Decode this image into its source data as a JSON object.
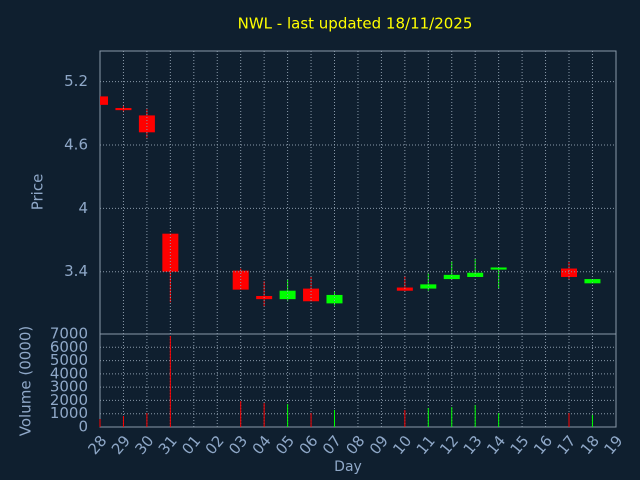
{
  "chart_data": {
    "type": "candlestick",
    "title": "NWL - last updated 18/11/2025",
    "y_label": "Price",
    "y2_label": "Volume (0000)",
    "x_label": "Day",
    "categories": [
      "28",
      "29",
      "30",
      "31",
      "01",
      "02",
      "03",
      "04",
      "05",
      "06",
      "07",
      "08",
      "09",
      "10",
      "11",
      "12",
      "13",
      "14",
      "15",
      "16",
      "17",
      "18",
      "19"
    ],
    "open": [
      5.06,
      4.95,
      4.88,
      3.76,
      null,
      null,
      3.41,
      3.17,
      3.14,
      3.24,
      3.1,
      null,
      null,
      3.25,
      3.24,
      3.33,
      3.35,
      3.42,
      null,
      null,
      3.43,
      3.29,
      null
    ],
    "high": [
      5.06,
      4.98,
      4.94,
      3.76,
      null,
      null,
      3.43,
      3.31,
      3.33,
      3.35,
      3.21,
      null,
      null,
      3.36,
      3.39,
      3.5,
      3.52,
      3.44,
      null,
      null,
      3.5,
      3.33,
      null
    ],
    "low": [
      4.98,
      4.91,
      4.67,
      3.11,
      null,
      null,
      3.23,
      3.07,
      3.12,
      3.12,
      3.08,
      null,
      null,
      3.22,
      3.22,
      3.33,
      3.35,
      3.24,
      null,
      null,
      3.33,
      3.29,
      null
    ],
    "close": [
      4.98,
      4.93,
      4.72,
      3.4,
      null,
      null,
      3.23,
      3.14,
      3.22,
      3.12,
      3.18,
      null,
      null,
      3.22,
      3.28,
      3.37,
      3.39,
      3.44,
      null,
      null,
      3.35,
      3.33,
      null
    ],
    "volume": [
      600,
      830,
      1050,
      6850,
      null,
      null,
      1950,
      1800,
      1730,
      1050,
      1280,
      null,
      null,
      1280,
      1430,
      1500,
      1650,
      1050,
      null,
      null,
      1050,
      900,
      null
    ],
    "ylim": [
      2.81,
      5.49
    ],
    "yticks": [
      3.4,
      4,
      4.6,
      5.2
    ],
    "y2lim": [
      0,
      7000
    ],
    "y2ticks": [
      0,
      1000,
      2000,
      3000,
      4000,
      5000,
      6000,
      7000
    ],
    "up_color": "#00ff00",
    "down_color": "#ff0000",
    "grid": true
  }
}
